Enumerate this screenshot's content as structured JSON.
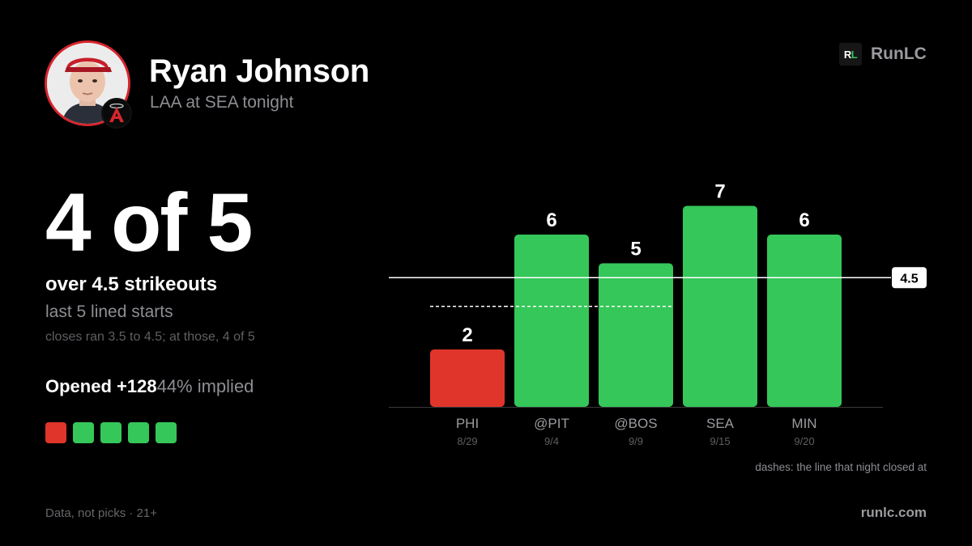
{
  "header": {
    "player_name": "Ryan Johnson",
    "matchup": "LAA at SEA tonight",
    "avatar_icon": "player-headshot",
    "team_icon": "angels-halo-a-logo"
  },
  "brand": {
    "logo_r": "R",
    "logo_l": "L",
    "name": "RunLC"
  },
  "summary": {
    "headline": "4 of 5",
    "stat_label": "over 4.5 strikeouts",
    "stat_sub": "last 5 lined starts",
    "note": "closes ran 3.5 to 4.5; at those, 4 of 5",
    "opened_price": "Opened +128",
    "opened_implied": "44% implied",
    "results": [
      "miss",
      "hit",
      "hit",
      "hit",
      "hit"
    ]
  },
  "colors": {
    "hit": "#35c759",
    "miss": "#e0352b",
    "line": "#ffffff",
    "axis": "#3a3a3a"
  },
  "chart_data": {
    "type": "bar",
    "categories": [
      "PHI",
      "@PIT",
      "@BOS",
      "SEA",
      "MIN"
    ],
    "dates": [
      "8/29",
      "9/4",
      "9/9",
      "9/15",
      "9/20"
    ],
    "values": [
      2,
      6,
      5,
      7,
      6
    ],
    "current_line": 4.5,
    "current_line_label": "4.5",
    "closing_lines": [
      3.5,
      3.5,
      3.5,
      null,
      null
    ],
    "ylim": [
      0,
      7
    ],
    "legend_note": "dashes: the line that night closed at"
  },
  "footer": {
    "disclaimer": "Data, not picks · 21+",
    "site": "runlc.com"
  }
}
